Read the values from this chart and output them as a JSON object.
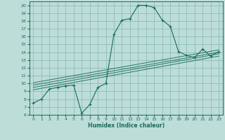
{
  "xlabel": "Humidex (Indice chaleur)",
  "xlim": [
    -0.5,
    23.5
  ],
  "ylim": [
    6,
    20.5
  ],
  "yticks": [
    6,
    7,
    8,
    9,
    10,
    11,
    12,
    13,
    14,
    15,
    16,
    17,
    18,
    19,
    20
  ],
  "xticks": [
    0,
    1,
    2,
    3,
    4,
    5,
    6,
    7,
    8,
    9,
    10,
    11,
    12,
    13,
    14,
    15,
    16,
    17,
    18,
    19,
    20,
    21,
    22,
    23
  ],
  "bg_color": "#bdddd8",
  "grid_color": "#8bbdb8",
  "line_color": "#1a6b5a",
  "main_curve_x": [
    0,
    1,
    2,
    3,
    4,
    5,
    6,
    7,
    8,
    9,
    10,
    11,
    12,
    13,
    14,
    15,
    16,
    17,
    18,
    19,
    20,
    21,
    22,
    23
  ],
  "main_curve_y": [
    7.5,
    8.0,
    9.3,
    9.5,
    9.7,
    9.8,
    6.2,
    7.3,
    9.5,
    10.0,
    16.3,
    18.1,
    18.3,
    20.0,
    20.0,
    19.7,
    18.1,
    17.3,
    14.1,
    13.6,
    13.3,
    14.4,
    13.5,
    14.1
  ],
  "diag_lines": [
    {
      "x": [
        0,
        23
      ],
      "y": [
        9.2,
        13.5
      ]
    },
    {
      "x": [
        0,
        23
      ],
      "y": [
        9.5,
        13.8
      ]
    },
    {
      "x": [
        0,
        23
      ],
      "y": [
        9.8,
        14.0
      ]
    },
    {
      "x": [
        0,
        23
      ],
      "y": [
        10.1,
        14.3
      ]
    }
  ]
}
